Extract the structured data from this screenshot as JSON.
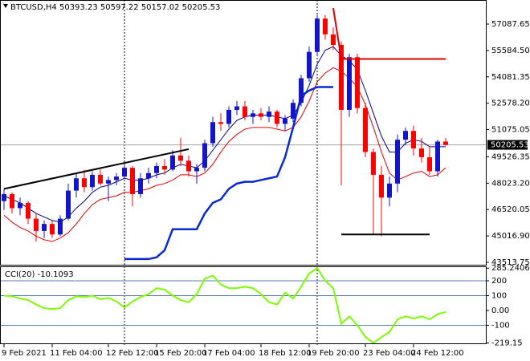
{
  "chart_data": [
    {
      "type": "candlestick",
      "title": "BTCUSD,H4  50393.23 50597.22 50157.02 50205.53",
      "categories": [
        "9 Feb 2021",
        null,
        null,
        null,
        null,
        null,
        "11 Feb 04:00",
        null,
        null,
        null,
        null,
        null,
        null,
        "12 Feb 12:00",
        null,
        null,
        null,
        null,
        null,
        "15 Feb 20:00",
        null,
        null,
        null,
        null,
        null,
        "17 Feb 04:00",
        null,
        null,
        null,
        null,
        null,
        null,
        "18 Feb 12:00",
        null,
        null,
        null,
        null,
        null,
        "19 Feb 20:00",
        null,
        null,
        null,
        null,
        null,
        null,
        "23 Feb 04:00",
        null,
        null,
        null,
        null,
        null,
        "24 Feb 12:00",
        null,
        null,
        null,
        null
      ],
      "open": [
        47000,
        47400,
        46600,
        46900,
        46000,
        45300,
        45700,
        45100,
        46000,
        47600,
        48300,
        47800,
        48500,
        48000,
        48200,
        48400,
        48900,
        47400,
        48300,
        48600,
        49000,
        48800,
        49600,
        49300,
        48700,
        48900,
        50300,
        51500,
        51400,
        52200,
        52400,
        51800,
        52000,
        51800,
        52100,
        51400,
        51700,
        52600,
        54000,
        55500,
        57400,
        56500,
        55900,
        52200,
        55200,
        52300,
        49800,
        48500,
        47200,
        48000,
        50500,
        51000,
        50000,
        49500,
        48700,
        50393.23
      ],
      "high": [
        47700,
        47500,
        47200,
        47000,
        46300,
        45900,
        45900,
        46200,
        48000,
        48600,
        48800,
        48700,
        48800,
        48400,
        48600,
        49100,
        49000,
        48600,
        48900,
        49200,
        49400,
        49900,
        50600,
        49600,
        49100,
        50500,
        51800,
        52000,
        52400,
        52700,
        52700,
        52200,
        52300,
        52400,
        52200,
        51900,
        52800,
        54200,
        55800,
        57600,
        57600,
        56900,
        56100,
        55400,
        55400,
        52600,
        50000,
        49000,
        48400,
        50800,
        51200,
        51300,
        50600,
        50100,
        50500,
        50597.22
      ],
      "low": [
        46500,
        46300,
        46200,
        45700,
        44700,
        44900,
        44900,
        45000,
        45900,
        47200,
        47500,
        47600,
        47900,
        47000,
        47900,
        48300,
        46700,
        47200,
        48000,
        48300,
        48500,
        48700,
        49000,
        48400,
        48000,
        48700,
        50100,
        51000,
        51200,
        51900,
        51600,
        51400,
        51600,
        51500,
        51200,
        51000,
        51500,
        52400,
        53800,
        55300,
        56200,
        55600,
        47900,
        51800,
        52000,
        49500,
        45100,
        45000,
        46700,
        47500,
        50200,
        49600,
        49200,
        48500,
        48400,
        50157.02
      ],
      "close": [
        47400,
        46600,
        46900,
        46000,
        45300,
        45700,
        45100,
        46000,
        47600,
        48300,
        47800,
        48500,
        48000,
        48200,
        48400,
        48900,
        47400,
        48300,
        48600,
        49000,
        48800,
        49600,
        49300,
        48700,
        48900,
        50300,
        51500,
        51400,
        52200,
        52400,
        51800,
        52000,
        51800,
        52100,
        51400,
        51700,
        52600,
        54000,
        55500,
        57400,
        56500,
        55900,
        52200,
        55200,
        52300,
        49800,
        48500,
        47200,
        48000,
        50500,
        51000,
        50000,
        49500,
        48700,
        50393.23,
        50205.53
      ],
      "up_color": "#1414c8",
      "down_color": "#ff0000",
      "lines": [
        {
          "color": "#000080",
          "values": [
            47300,
            47100,
            46900,
            46600,
            46300,
            46100,
            45900,
            45800,
            46100,
            46600,
            47000,
            47500,
            47800,
            47900,
            48100,
            48300,
            48200,
            48200,
            48300,
            48500,
            48600,
            48900,
            49100,
            49000,
            48900,
            49300,
            49900,
            50500,
            51100,
            51600,
            51800,
            51900,
            51900,
            51900,
            51800,
            51700,
            51900,
            52600,
            53600,
            54800,
            55600,
            55800,
            55300,
            55000,
            54500,
            53300,
            52000,
            50700,
            49800,
            49800,
            50300,
            50500,
            50400,
            50100,
            50100,
            50100
          ]
        },
        {
          "color": "#e00000",
          "values": [
            46200,
            45800,
            45500,
            45300,
            45000,
            44800,
            44700,
            44900,
            45200,
            45700,
            46300,
            46800,
            47100,
            47200,
            47300,
            47500,
            47500,
            47600,
            47700,
            47900,
            48000,
            48200,
            48500,
            48500,
            48400,
            48600,
            49100,
            49800,
            50400,
            50800,
            51100,
            51200,
            51200,
            51200,
            51100,
            51000,
            51200,
            51800,
            52700,
            53800,
            54300,
            54600,
            54400,
            54000,
            53500,
            52500,
            51200,
            49800,
            48600,
            48200,
            48400,
            48600,
            48700,
            48400,
            48500,
            48900
          ]
        },
        {
          "color": "#0a28d2",
          "values": [
            null,
            null,
            null,
            null,
            null,
            null,
            null,
            null,
            null,
            null,
            null,
            null,
            null,
            null,
            null,
            43700,
            43700,
            43700,
            43700,
            43800,
            44200,
            45400,
            45400,
            45400,
            45400,
            46300,
            46900,
            47100,
            47700,
            48000,
            48100,
            48100,
            48200,
            48300,
            48400,
            49500,
            51200,
            53000,
            53300,
            53500,
            53500,
            53500,
            null,
            null,
            null,
            null,
            null,
            null,
            null,
            null,
            null,
            null,
            null,
            null,
            null,
            null
          ]
        }
      ],
      "trendlines": [
        {
          "color": "#000000",
          "points": [
            [
              0,
              47700
            ],
            [
              23,
              49960
            ]
          ]
        },
        {
          "color": "#e00000",
          "points": [
            [
              41,
              58000
            ],
            [
              42,
              55100
            ],
            [
              55,
              55100
            ]
          ]
        },
        {
          "color": "#000000",
          "points": [
            [
              42,
              45100
            ],
            [
              53,
              45100
            ]
          ]
        }
      ],
      "ylim": [
        43376,
        58230
      ],
      "yticks": [
        57087.65,
        {
          "value": 55584.5,
          "label": "55584.50"
        },
        54081.35,
        {
          "value": 52578.2,
          "label": "52578.20"
        },
        51075.05,
        49526.35,
        {
          "value": 48023.2,
          "label": "48023.20"
        },
        46520.05,
        {
          "value": 45016.9,
          "label": "45016.90"
        },
        43513.75
      ]
    },
    {
      "type": "line",
      "title": "CCI(20) -10.1093",
      "series": [
        {
          "color": "#7cfc00",
          "values": [
            100,
            95,
            80,
            70,
            40,
            15,
            10,
            15,
            70,
            95,
            90,
            100,
            75,
            85,
            60,
            20,
            60,
            90,
            110,
            150,
            140,
            100,
            70,
            55,
            110,
            215,
            235,
            175,
            150,
            150,
            160,
            150,
            110,
            55,
            40,
            120,
            80,
            160,
            250,
            285.2406,
            200,
            150,
            -90,
            -40,
            -100,
            -180,
            -219.15,
            -180,
            -145,
            -60,
            -40,
            -55,
            -40,
            -60,
            -25,
            -10.1093
          ]
        }
      ],
      "levels": [
        200,
        100,
        -100
      ],
      "level_color": "#5a82b4",
      "ylim": [
        -222,
        292
      ],
      "yticks": [
        285.2406,
        200,
        100,
        {
          "value": 0,
          "label": "0.00"
        },
        -100,
        -219.15
      ]
    }
  ]
}
